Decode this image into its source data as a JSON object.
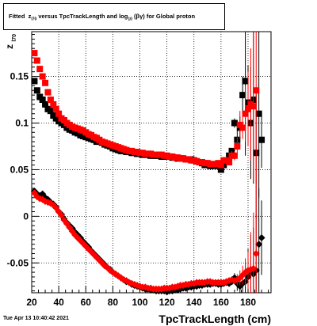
{
  "chart_data": {
    "type": "scatter",
    "title": {
      "prefix": "Fitted",
      "z_letter": "z",
      "z_sub": "l70",
      "mid": "versus TpcTrackLength and log",
      "log_sub": "10",
      "tail": "(βγ) for Global proton"
    },
    "xlabel": "TpcTrackLength (cm)",
    "ylabel": "z",
    "ylabel_sub": "l70",
    "xlim": [
      20,
      197
    ],
    "ylim": [
      -0.082,
      0.198
    ],
    "xticks": [
      20,
      40,
      60,
      80,
      100,
      120,
      140,
      160,
      180
    ],
    "yticks": [
      -0.05,
      0,
      0.05,
      0.1,
      0.15
    ],
    "ytick_labels": [
      "-0.05",
      "0",
      "0.05",
      "0.1",
      "0.15"
    ],
    "grid": true,
    "series": [
      {
        "color": "#000000",
        "marker": "square",
        "x": [
          22,
          24,
          26,
          28,
          30,
          32,
          34,
          36,
          38,
          40,
          42,
          44,
          46,
          48,
          50,
          52,
          54,
          56,
          58,
          60,
          62,
          64,
          66,
          68,
          70,
          72,
          74,
          76,
          78,
          80,
          82,
          84,
          86,
          88,
          90,
          92,
          94,
          96,
          98,
          100,
          102,
          104,
          106,
          108,
          110,
          112,
          114,
          116,
          118,
          120,
          122,
          124,
          126,
          128,
          130,
          132,
          134,
          136,
          138,
          140,
          142,
          144,
          146,
          148,
          150,
          152,
          154,
          156,
          158,
          160,
          162,
          164,
          166,
          168,
          170,
          172,
          174,
          176,
          178,
          180,
          182,
          184,
          186,
          188,
          190
        ],
        "y": [
          0.145,
          0.135,
          0.128,
          0.125,
          0.12,
          0.115,
          0.113,
          0.108,
          0.105,
          0.102,
          0.1,
          0.098,
          0.095,
          0.093,
          0.092,
          0.09,
          0.089,
          0.087,
          0.086,
          0.085,
          0.084,
          0.083,
          0.082,
          0.08,
          0.08,
          0.079,
          0.077,
          0.076,
          0.075,
          0.073,
          0.072,
          0.071,
          0.07,
          0.07,
          0.069,
          0.069,
          0.068,
          0.068,
          0.067,
          0.067,
          0.066,
          0.066,
          0.066,
          0.065,
          0.065,
          0.065,
          0.065,
          0.064,
          0.064,
          0.064,
          0.064,
          0.063,
          0.063,
          0.062,
          0.062,
          0.062,
          0.061,
          0.061,
          0.061,
          0.06,
          0.059,
          0.058,
          0.057,
          0.055,
          0.055,
          0.054,
          0.054,
          0.055,
          0.054,
          0.05,
          0.055,
          0.06,
          0.065,
          0.07,
          0.1,
          0.082,
          0.095,
          0.13,
          0.145,
          0.122,
          0.1,
          0.125,
          0.068,
          0.11,
          0.082
        ],
        "yerr": [
          0,
          0,
          0,
          0,
          0,
          0,
          0,
          0,
          0,
          0,
          0,
          0,
          0,
          0,
          0,
          0,
          0,
          0,
          0,
          0,
          0,
          0,
          0,
          0,
          0,
          0,
          0,
          0,
          0,
          0,
          0,
          0,
          0,
          0,
          0,
          0,
          0,
          0,
          0,
          0,
          0,
          0,
          0,
          0,
          0,
          0,
          0,
          0,
          0,
          0,
          0,
          0,
          0,
          0,
          0,
          0,
          0,
          0,
          0,
          0,
          0,
          0,
          0,
          0,
          0,
          0,
          0,
          0,
          0,
          0,
          0,
          0,
          0,
          0,
          0.005,
          0.01,
          0.012,
          0.02,
          0.08,
          0.04,
          0.06,
          0.09,
          0.07,
          0.09,
          0.03
        ]
      },
      {
        "color": "#ff0000",
        "marker": "square",
        "x": [
          22,
          24,
          26,
          28,
          30,
          32,
          34,
          36,
          38,
          40,
          42,
          44,
          46,
          48,
          50,
          52,
          54,
          56,
          58,
          60,
          62,
          64,
          66,
          68,
          70,
          72,
          74,
          76,
          78,
          80,
          82,
          84,
          86,
          88,
          90,
          92,
          94,
          96,
          98,
          100,
          102,
          104,
          106,
          108,
          110,
          112,
          114,
          116,
          118,
          120,
          122,
          124,
          126,
          128,
          130,
          132,
          134,
          136,
          138,
          140,
          142,
          144,
          146,
          148,
          150,
          152,
          154,
          156,
          158,
          160,
          162,
          164,
          166,
          168,
          170,
          172,
          174,
          176,
          178,
          180,
          182,
          184,
          186
        ],
        "y": [
          0.175,
          0.167,
          0.158,
          0.15,
          0.143,
          0.133,
          0.125,
          0.12,
          0.115,
          0.11,
          0.105,
          0.103,
          0.1,
          0.098,
          0.096,
          0.095,
          0.094,
          0.093,
          0.092,
          0.09,
          0.088,
          0.087,
          0.085,
          0.084,
          0.082,
          0.08,
          0.079,
          0.078,
          0.077,
          0.076,
          0.075,
          0.074,
          0.073,
          0.072,
          0.071,
          0.07,
          0.07,
          0.069,
          0.069,
          0.068,
          0.068,
          0.067,
          0.067,
          0.067,
          0.066,
          0.066,
          0.066,
          0.066,
          0.065,
          0.065,
          0.064,
          0.064,
          0.063,
          0.063,
          0.062,
          0.062,
          0.061,
          0.061,
          0.06,
          0.06,
          0.059,
          0.058,
          0.058,
          0.057,
          0.057,
          0.056,
          0.056,
          0.056,
          0.057,
          0.055,
          0.06,
          0.06,
          0.058,
          0.065,
          0.065,
          0.075,
          0.098,
          0.095,
          0.11,
          0.115,
          0.12,
          0.118,
          0.135
        ],
        "yerr": [
          0,
          0,
          0,
          0,
          0,
          0,
          0,
          0,
          0,
          0,
          0,
          0,
          0,
          0,
          0,
          0,
          0,
          0,
          0,
          0,
          0,
          0,
          0,
          0,
          0,
          0,
          0,
          0,
          0,
          0,
          0,
          0,
          0,
          0,
          0,
          0,
          0,
          0,
          0,
          0,
          0,
          0,
          0,
          0,
          0,
          0,
          0,
          0,
          0,
          0,
          0,
          0,
          0,
          0,
          0,
          0,
          0,
          0,
          0,
          0,
          0,
          0,
          0,
          0,
          0,
          0,
          0,
          0,
          0,
          0,
          0,
          0,
          0,
          0.005,
          0.005,
          0.01,
          0.015,
          0.012,
          0.03,
          0.04,
          0.06,
          0.08,
          0.1
        ]
      },
      {
        "color": "#000000",
        "marker": "diamond",
        "x": [
          22,
          24,
          26,
          28,
          30,
          32,
          34,
          36,
          38,
          40,
          42,
          44,
          46,
          48,
          50,
          52,
          54,
          56,
          58,
          60,
          62,
          64,
          66,
          68,
          70,
          72,
          74,
          76,
          78,
          80,
          82,
          84,
          86,
          88,
          90,
          92,
          94,
          96,
          98,
          100,
          102,
          104,
          106,
          108,
          110,
          112,
          114,
          116,
          118,
          120,
          122,
          124,
          126,
          128,
          130,
          132,
          134,
          136,
          138,
          140,
          142,
          144,
          146,
          148,
          150,
          152,
          154,
          156,
          158,
          160,
          162,
          164,
          166,
          168,
          170,
          172,
          174,
          176,
          178,
          180,
          182,
          184,
          186,
          188,
          190
        ],
        "y": [
          0.027,
          0.024,
          0.022,
          0.024,
          0.02,
          0.018,
          0.015,
          0.013,
          0.01,
          0.005,
          0.002,
          -0.003,
          -0.007,
          -0.01,
          -0.013,
          -0.017,
          -0.02,
          -0.023,
          -0.027,
          -0.03,
          -0.033,
          -0.037,
          -0.04,
          -0.043,
          -0.046,
          -0.049,
          -0.052,
          -0.055,
          -0.057,
          -0.06,
          -0.062,
          -0.064,
          -0.066,
          -0.068,
          -0.07,
          -0.071,
          -0.073,
          -0.074,
          -0.075,
          -0.076,
          -0.077,
          -0.078,
          -0.078,
          -0.079,
          -0.079,
          -0.08,
          -0.08,
          -0.08,
          -0.08,
          -0.081,
          -0.08,
          -0.08,
          -0.079,
          -0.079,
          -0.078,
          -0.077,
          -0.077,
          -0.076,
          -0.076,
          -0.075,
          -0.075,
          -0.074,
          -0.074,
          -0.073,
          -0.073,
          -0.073,
          -0.072,
          -0.072,
          -0.073,
          -0.073,
          -0.072,
          -0.071,
          -0.072,
          -0.07,
          -0.066,
          -0.072,
          -0.075,
          -0.072,
          -0.07,
          -0.065,
          -0.06,
          -0.062,
          -0.058,
          -0.03,
          -0.023
        ],
        "yerr": [
          0,
          0,
          0,
          0,
          0,
          0,
          0,
          0,
          0,
          0,
          0,
          0,
          0,
          0,
          0,
          0,
          0,
          0,
          0,
          0,
          0,
          0,
          0,
          0,
          0,
          0,
          0,
          0,
          0,
          0,
          0,
          0,
          0,
          0,
          0,
          0,
          0,
          0,
          0,
          0,
          0,
          0,
          0,
          0,
          0,
          0,
          0,
          0,
          0,
          0,
          0,
          0,
          0,
          0,
          0,
          0,
          0,
          0,
          0,
          0,
          0,
          0,
          0,
          0,
          0,
          0,
          0,
          0,
          0,
          0,
          0,
          0,
          0,
          0,
          0.005,
          0.008,
          0.01,
          0.01,
          0.02,
          0.03,
          0.04,
          0.05,
          0.06,
          0.06,
          0.04
        ]
      },
      {
        "color": "#ff0000",
        "marker": "diamond",
        "x": [
          22,
          24,
          26,
          28,
          30,
          32,
          34,
          36,
          38,
          40,
          42,
          44,
          46,
          48,
          50,
          52,
          54,
          56,
          58,
          60,
          62,
          64,
          66,
          68,
          70,
          72,
          74,
          76,
          78,
          80,
          82,
          84,
          86,
          88,
          90,
          92,
          94,
          96,
          98,
          100,
          102,
          104,
          106,
          108,
          110,
          112,
          114,
          116,
          118,
          120,
          122,
          124,
          126,
          128,
          130,
          132,
          134,
          136,
          138,
          140,
          142,
          144,
          146,
          148,
          150,
          152,
          154,
          156,
          158,
          160,
          162,
          164,
          166,
          168,
          170,
          172,
          174,
          176,
          178,
          180,
          182,
          184,
          186
        ],
        "y": [
          0.025,
          0.021,
          0.019,
          0.018,
          0.016,
          0.015,
          0.014,
          0.012,
          0.009,
          0.005,
          0.001,
          -0.004,
          -0.008,
          -0.012,
          -0.016,
          -0.02,
          -0.023,
          -0.026,
          -0.029,
          -0.032,
          -0.035,
          -0.038,
          -0.041,
          -0.044,
          -0.047,
          -0.05,
          -0.053,
          -0.055,
          -0.058,
          -0.06,
          -0.062,
          -0.064,
          -0.066,
          -0.068,
          -0.069,
          -0.071,
          -0.072,
          -0.073,
          -0.074,
          -0.075,
          -0.076,
          -0.076,
          -0.077,
          -0.077,
          -0.078,
          -0.078,
          -0.078,
          -0.078,
          -0.077,
          -0.077,
          -0.077,
          -0.076,
          -0.076,
          -0.075,
          -0.074,
          -0.074,
          -0.073,
          -0.073,
          -0.072,
          -0.072,
          -0.071,
          -0.071,
          -0.071,
          -0.071,
          -0.07,
          -0.07,
          -0.071,
          -0.071,
          -0.071,
          -0.071,
          -0.071,
          -0.07,
          -0.069,
          -0.068,
          -0.069,
          -0.068,
          -0.066,
          -0.063,
          -0.06,
          -0.058,
          -0.057,
          -0.056,
          -0.04
        ],
        "yerr": [
          0,
          0,
          0,
          0,
          0,
          0,
          0,
          0,
          0,
          0,
          0,
          0,
          0,
          0,
          0,
          0,
          0,
          0,
          0,
          0,
          0,
          0,
          0,
          0,
          0,
          0,
          0,
          0,
          0,
          0,
          0,
          0,
          0,
          0,
          0,
          0,
          0,
          0,
          0,
          0,
          0,
          0,
          0,
          0,
          0,
          0,
          0,
          0,
          0,
          0,
          0,
          0,
          0,
          0,
          0,
          0,
          0,
          0,
          0,
          0,
          0,
          0,
          0,
          0,
          0,
          0,
          0,
          0,
          0,
          0,
          0,
          0,
          0,
          0,
          0,
          0.006,
          0.008,
          0.01,
          0.015,
          0.02,
          0.04,
          0.06,
          0.09
        ]
      }
    ]
  },
  "footer": {
    "timestamp": "Tue Apr 13 10:40:42 2021"
  }
}
